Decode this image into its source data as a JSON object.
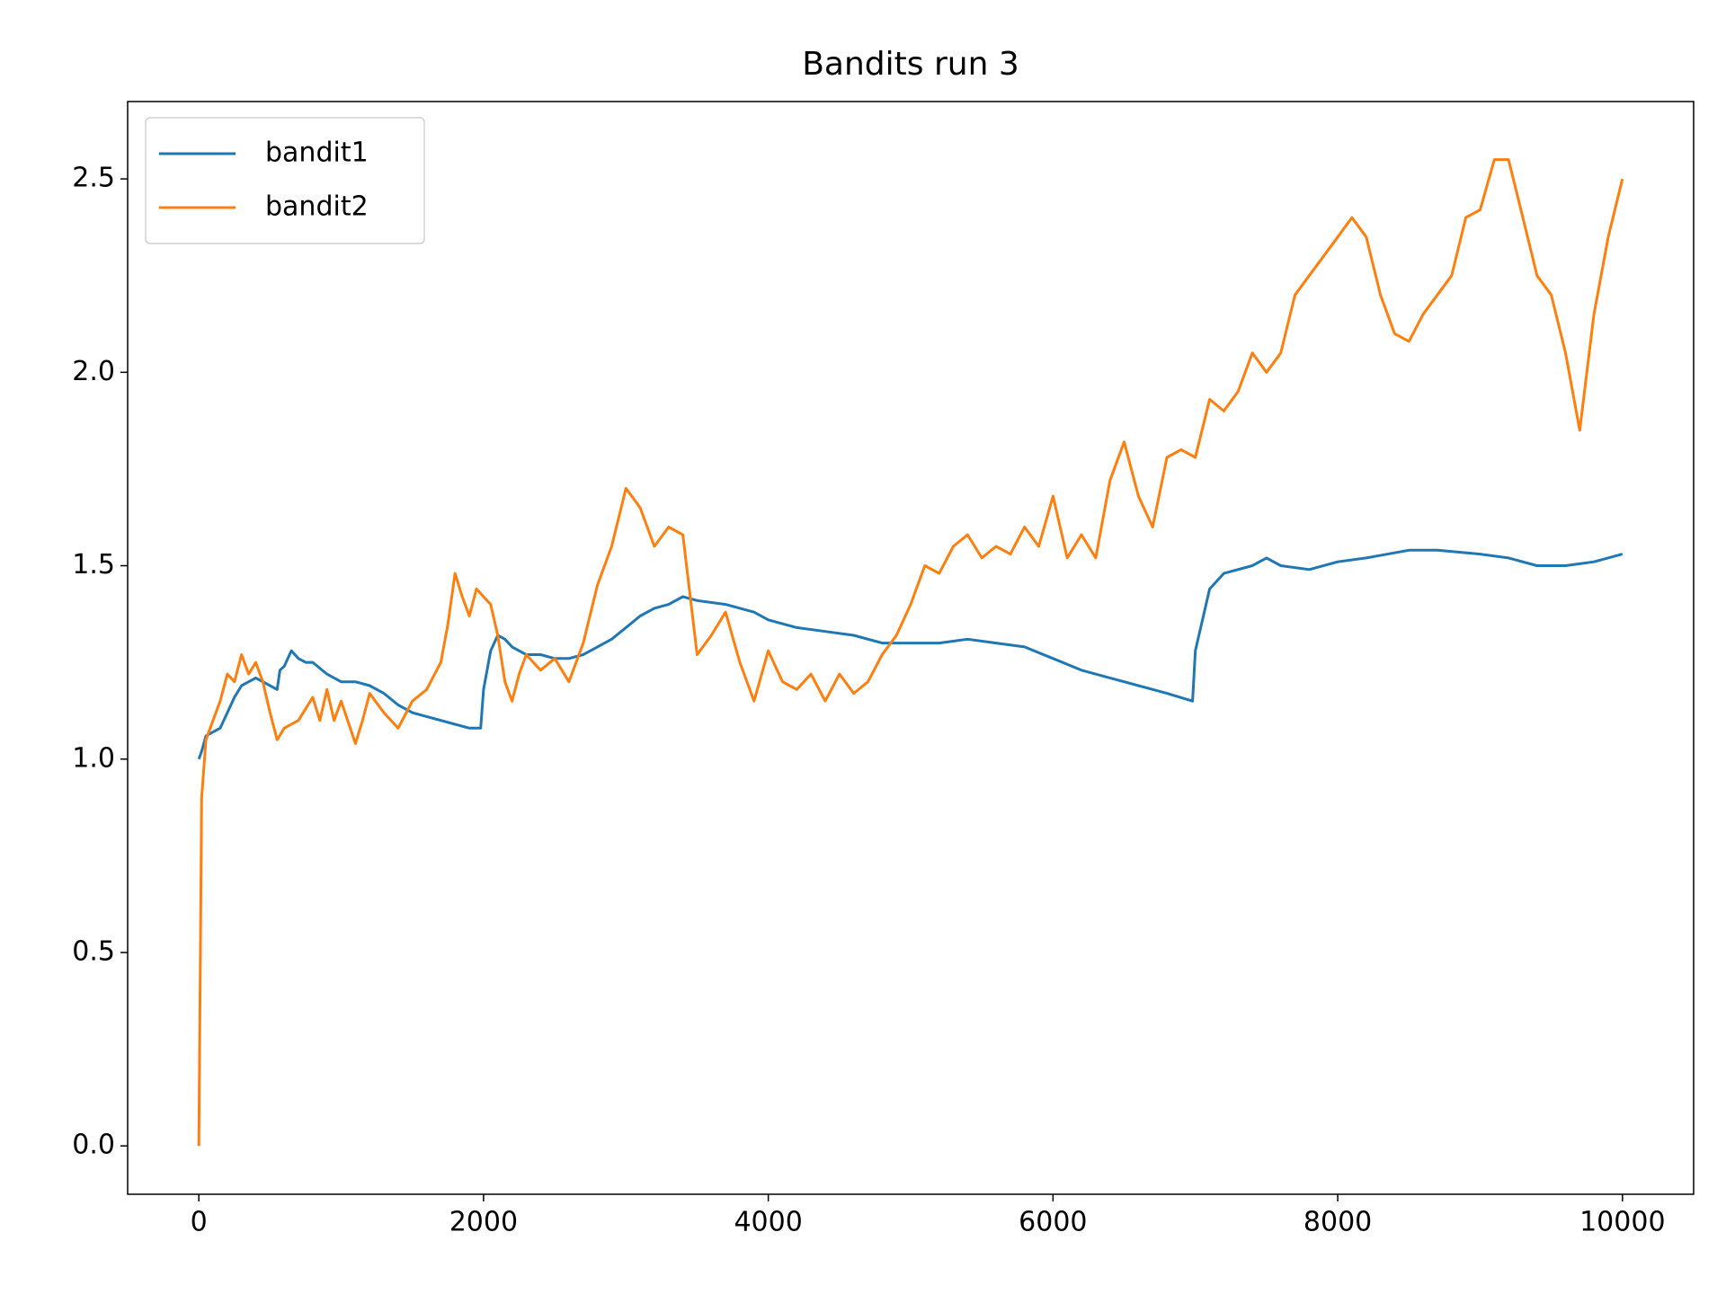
{
  "chart_data": {
    "type": "line",
    "title": "Bandits run 3",
    "xlim": [
      -500,
      10500
    ],
    "ylim": [
      -0.125,
      2.7
    ],
    "xticks": [
      0,
      2000,
      4000,
      6000,
      8000,
      10000
    ],
    "yticks": [
      {
        "value": 0,
        "label": "0.0"
      },
      0.5,
      {
        "value": 1,
        "label": "1.0"
      },
      1.5,
      {
        "value": 2,
        "label": "2.0"
      },
      2.5
    ],
    "legend": "upper left",
    "series": [
      {
        "name": "bandit1",
        "color": "#1f77b4",
        "x": [
          0,
          20,
          50,
          100,
          150,
          200,
          250,
          300,
          350,
          400,
          450,
          500,
          550,
          570,
          600,
          650,
          700,
          750,
          800,
          900,
          1000,
          1100,
          1200,
          1300,
          1400,
          1500,
          1600,
          1700,
          1800,
          1900,
          1980,
          2000,
          2050,
          2100,
          2150,
          2200,
          2300,
          2400,
          2500,
          2600,
          2700,
          2800,
          2900,
          3000,
          3100,
          3200,
          3300,
          3400,
          3500,
          3700,
          3900,
          4000,
          4200,
          4400,
          4600,
          4800,
          5000,
          5200,
          5400,
          5600,
          5800,
          6000,
          6200,
          6400,
          6600,
          6800,
          6980,
          7000,
          7100,
          7200,
          7400,
          7500,
          7600,
          7800,
          8000,
          8200,
          8500,
          8700,
          9000,
          9200,
          9400,
          9600,
          9800,
          10000
        ],
        "values": [
          1.0,
          1.02,
          1.06,
          1.07,
          1.08,
          1.12,
          1.16,
          1.19,
          1.2,
          1.21,
          1.2,
          1.19,
          1.18,
          1.23,
          1.24,
          1.28,
          1.26,
          1.25,
          1.25,
          1.22,
          1.2,
          1.2,
          1.19,
          1.17,
          1.14,
          1.12,
          1.11,
          1.1,
          1.09,
          1.08,
          1.08,
          1.18,
          1.28,
          1.32,
          1.31,
          1.29,
          1.27,
          1.27,
          1.26,
          1.26,
          1.27,
          1.29,
          1.31,
          1.34,
          1.37,
          1.39,
          1.4,
          1.42,
          1.41,
          1.4,
          1.38,
          1.36,
          1.34,
          1.33,
          1.32,
          1.3,
          1.3,
          1.3,
          1.31,
          1.3,
          1.29,
          1.26,
          1.23,
          1.21,
          1.19,
          1.17,
          1.15,
          1.28,
          1.44,
          1.48,
          1.5,
          1.52,
          1.5,
          1.49,
          1.51,
          1.52,
          1.54,
          1.54,
          1.53,
          1.52,
          1.5,
          1.5,
          1.51,
          1.53
        ]
      },
      {
        "name": "bandit2",
        "color": "#ff7f0e",
        "x": [
          0,
          20,
          50,
          100,
          150,
          200,
          250,
          300,
          350,
          400,
          450,
          500,
          550,
          600,
          700,
          800,
          850,
          900,
          950,
          1000,
          1100,
          1150,
          1200,
          1300,
          1400,
          1500,
          1600,
          1700,
          1750,
          1800,
          1850,
          1900,
          1950,
          2000,
          2050,
          2100,
          2150,
          2200,
          2250,
          2300,
          2400,
          2500,
          2600,
          2700,
          2800,
          2900,
          3000,
          3100,
          3200,
          3300,
          3400,
          3500,
          3600,
          3700,
          3800,
          3900,
          4000,
          4100,
          4200,
          4300,
          4400,
          4500,
          4600,
          4700,
          4800,
          4900,
          5000,
          5100,
          5200,
          5300,
          5400,
          5500,
          5600,
          5700,
          5800,
          5900,
          6000,
          6100,
          6200,
          6300,
          6400,
          6500,
          6600,
          6700,
          6800,
          6900,
          7000,
          7100,
          7200,
          7300,
          7400,
          7500,
          7600,
          7700,
          7800,
          7900,
          8000,
          8100,
          8200,
          8300,
          8400,
          8500,
          8600,
          8700,
          8800,
          8900,
          9000,
          9100,
          9200,
          9300,
          9400,
          9500,
          9600,
          9700,
          9800,
          9900,
          10000
        ],
        "values": [
          0,
          0.9,
          1.05,
          1.1,
          1.15,
          1.22,
          1.2,
          1.27,
          1.22,
          1.25,
          1.2,
          1.12,
          1.05,
          1.08,
          1.1,
          1.16,
          1.1,
          1.18,
          1.1,
          1.15,
          1.04,
          1.1,
          1.17,
          1.12,
          1.08,
          1.15,
          1.18,
          1.25,
          1.35,
          1.48,
          1.42,
          1.37,
          1.44,
          1.42,
          1.4,
          1.32,
          1.2,
          1.15,
          1.22,
          1.27,
          1.23,
          1.26,
          1.2,
          1.3,
          1.45,
          1.55,
          1.7,
          1.65,
          1.55,
          1.6,
          1.58,
          1.27,
          1.32,
          1.38,
          1.25,
          1.15,
          1.28,
          1.2,
          1.18,
          1.22,
          1.15,
          1.22,
          1.17,
          1.2,
          1.27,
          1.32,
          1.4,
          1.5,
          1.48,
          1.55,
          1.58,
          1.52,
          1.55,
          1.53,
          1.6,
          1.55,
          1.68,
          1.52,
          1.58,
          1.52,
          1.72,
          1.82,
          1.68,
          1.6,
          1.78,
          1.8,
          1.78,
          1.93,
          1.9,
          1.95,
          2.05,
          2.0,
          2.05,
          2.2,
          2.25,
          2.3,
          2.35,
          2.4,
          2.35,
          2.2,
          2.1,
          2.08,
          2.15,
          2.2,
          2.25,
          2.4,
          2.42,
          2.55,
          2.55,
          2.4,
          2.25,
          2.2,
          2.05,
          1.85,
          2.15,
          2.35,
          2.5
        ]
      }
    ]
  }
}
